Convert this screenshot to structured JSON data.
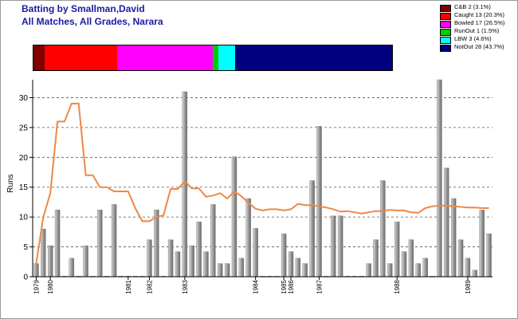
{
  "header": {
    "title": "Batting by Smallman,David",
    "subtitle": "All Matches, All Grades, Narara"
  },
  "legend": [
    {
      "label": "C&B 2 (3.1%)",
      "color": "#800000",
      "count": 2,
      "pct": 3.1
    },
    {
      "label": "Caught 13 (20.3%)",
      "color": "#ff0000",
      "count": 13,
      "pct": 20.3
    },
    {
      "label": "Bowled 17 (26.5%)",
      "color": "#ff00ff",
      "count": 17,
      "pct": 26.5
    },
    {
      "label": "RunOut 1 (1.5%)",
      "color": "#00cc00",
      "count": 1,
      "pct": 1.5
    },
    {
      "label": "LBW 3 (4.6%)",
      "color": "#00ffff",
      "count": 3,
      "pct": 4.6
    },
    {
      "label": "NotOut 28 (43.7%)",
      "color": "#000080",
      "count": 28,
      "pct": 43.7
    }
  ],
  "chart_data": {
    "type": "bar",
    "ylabel": "Runs",
    "ylim": [
      0,
      33
    ],
    "yticks": [
      0,
      5,
      10,
      15,
      20,
      25,
      30
    ],
    "grid": true,
    "bar_color": "#a0a0a0",
    "line_color": "#ee8844",
    "x_tick_labels": [
      {
        "index": 0,
        "label": "1979"
      },
      {
        "index": 2,
        "label": "1980"
      },
      {
        "index": 13,
        "label": "1981"
      },
      {
        "index": 16,
        "label": "1982"
      },
      {
        "index": 21,
        "label": "1983"
      },
      {
        "index": 31,
        "label": "1984"
      },
      {
        "index": 35,
        "label": "1985"
      },
      {
        "index": 36,
        "label": "1986"
      },
      {
        "index": 40,
        "label": "1987"
      },
      {
        "index": 51,
        "label": "1988"
      },
      {
        "index": 61,
        "label": "1989"
      }
    ],
    "values": [
      2.2,
      8,
      5.2,
      11.2,
      0.1,
      3.1,
      0.1,
      5.2,
      0.1,
      11.2,
      0.1,
      12.1,
      0.1,
      0.1,
      0.1,
      0.1,
      6.2,
      11.2,
      0.1,
      6.2,
      4.2,
      31,
      5.2,
      9.2,
      4.2,
      12.1,
      2.2,
      2.2,
      20.1,
      3.1,
      13.1,
      8.1,
      0.1,
      0.1,
      0.1,
      7.2,
      4.2,
      3.1,
      2.2,
      16.1,
      25.2,
      0.1,
      10.2,
      10.2,
      0.1,
      0.1,
      0.1,
      2.2,
      6.2,
      16.1,
      2.2,
      9.2,
      4.2,
      6.2,
      2.2,
      3.1,
      0.1,
      33,
      18.2,
      13.1,
      6.2,
      3.1,
      1.1,
      11.2,
      7.2
    ],
    "average": [
      2.2,
      10,
      14,
      26,
      26,
      29,
      29,
      17,
      17,
      15,
      15,
      14.3,
      14.3,
      14.3,
      11.5,
      9.3,
      9.3,
      10,
      10.3,
      14.7,
      14.7,
      16,
      14.8,
      14.8,
      13.4,
      13.6,
      14,
      13.1,
      14.3,
      13.5,
      12.4,
      11.4,
      11.1,
      11.3,
      11.3,
      11.1,
      11.3,
      12.2,
      12,
      12,
      11.8,
      11.6,
      11.3,
      10.9,
      11,
      10.8,
      10.6,
      10.8,
      11,
      11,
      11.2,
      11.1,
      11.1,
      10.8,
      10.7,
      11.5,
      11.8,
      11.9,
      11.9,
      11.8,
      11.7,
      11.6,
      11.6,
      11.5,
      11.5
    ]
  }
}
